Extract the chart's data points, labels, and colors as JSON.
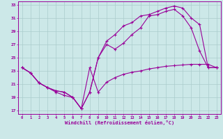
{
  "xlabel": "Windchill (Refroidissement éolien,°C)",
  "xlim": [
    -0.5,
    23.5
  ],
  "ylim": [
    16.5,
    33.5
  ],
  "yticks": [
    17,
    19,
    21,
    23,
    25,
    27,
    29,
    31,
    33
  ],
  "xticks": [
    0,
    1,
    2,
    3,
    4,
    5,
    6,
    7,
    8,
    9,
    10,
    11,
    12,
    13,
    14,
    15,
    16,
    17,
    18,
    19,
    20,
    21,
    22,
    23
  ],
  "bg_color": "#cce8e8",
  "line_color": "#990099",
  "grid_color": "#aacccc",
  "line1_x": [
    0,
    1,
    2,
    3,
    4,
    5,
    6,
    7,
    8,
    9,
    10,
    11,
    12,
    13,
    14,
    15,
    16,
    17,
    18,
    19,
    20,
    21,
    22,
    23
  ],
  "line1_y": [
    23.5,
    22.7,
    21.2,
    20.5,
    19.8,
    19.3,
    19.0,
    17.3,
    23.5,
    19.8,
    21.3,
    22.0,
    22.5,
    22.8,
    23.0,
    23.3,
    23.5,
    23.7,
    23.8,
    23.9,
    24.0,
    24.0,
    24.0,
    23.5
  ],
  "line2_x": [
    0,
    1,
    2,
    3,
    4,
    5,
    6,
    7,
    8,
    9,
    10,
    11,
    12,
    13,
    14,
    15,
    16,
    17,
    18,
    19,
    20,
    21,
    22,
    23
  ],
  "line2_y": [
    23.5,
    22.7,
    21.2,
    20.5,
    20.0,
    19.8,
    19.0,
    17.3,
    19.8,
    25.0,
    27.0,
    26.3,
    27.2,
    28.5,
    29.5,
    31.3,
    31.5,
    32.0,
    32.3,
    31.3,
    29.5,
    26.0,
    23.5,
    23.5
  ],
  "line3_x": [
    0,
    1,
    2,
    3,
    4,
    5,
    6,
    7,
    8,
    9,
    10,
    11,
    12,
    13,
    14,
    15,
    16,
    17,
    18,
    19,
    20,
    21,
    22,
    23
  ],
  "line3_y": [
    23.5,
    22.7,
    21.2,
    20.5,
    20.0,
    19.8,
    19.0,
    17.3,
    19.8,
    25.0,
    27.5,
    28.5,
    29.8,
    30.3,
    31.3,
    31.5,
    32.0,
    32.5,
    32.8,
    32.5,
    31.0,
    30.0,
    23.5,
    23.5
  ]
}
